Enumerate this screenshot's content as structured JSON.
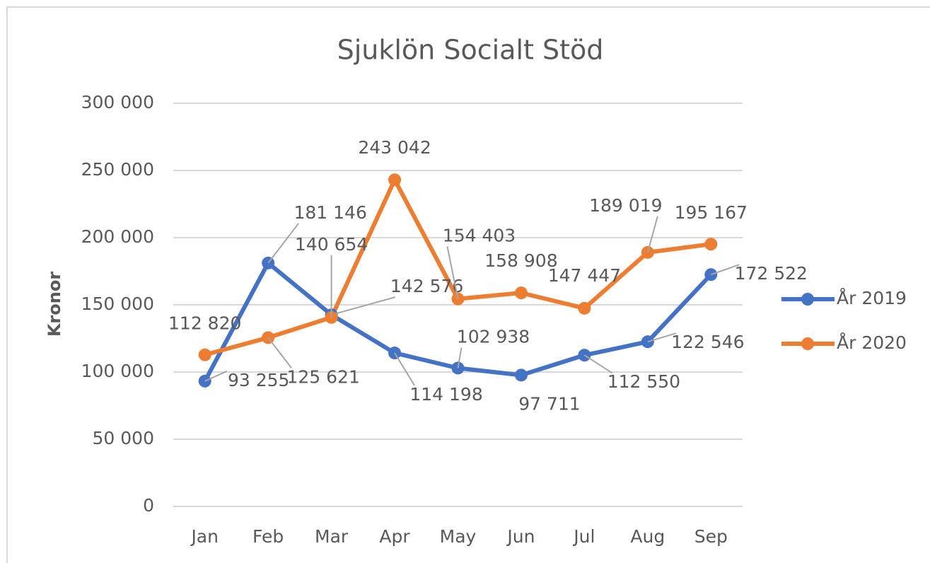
{
  "chart_data": {
    "type": "line",
    "title": "Sjuklön Socialt Stöd",
    "y_label": "Kronor",
    "categories": [
      "Jan",
      "Feb",
      "Mar",
      "Apr",
      "May",
      "Jun",
      "Jul",
      "Aug",
      "Sep"
    ],
    "series": [
      {
        "name": "År 2019",
        "color": "#4472c4",
        "values": [
          93255,
          181146,
          142576,
          114198,
          102938,
          97711,
          112550,
          122546,
          172522
        ],
        "value_labels": [
          "93 255",
          "181 146",
          "142 576",
          "114 198",
          "102 938",
          "97 711",
          "112 550",
          "122 546",
          "172 522"
        ]
      },
      {
        "name": "År 2020",
        "color": "#ed7d31",
        "values": [
          112820,
          125621,
          140654,
          243042,
          154403,
          158908,
          147447,
          189019,
          195167
        ],
        "value_labels": [
          "112 820",
          "125 621",
          "140 654",
          "243 042",
          "154 403",
          "158 908",
          "147 447",
          "189 019",
          "195 167"
        ]
      }
    ],
    "ylim": [
      0,
      300000
    ],
    "yticks": [
      {
        "value": 0,
        "label": "0"
      },
      {
        "value": 50000,
        "label": "50 000"
      },
      {
        "value": 100000,
        "label": "100 000"
      },
      {
        "value": 150000,
        "label": "150 000"
      },
      {
        "value": 200000,
        "label": "200 000"
      },
      {
        "value": 250000,
        "label": "250 000"
      },
      {
        "value": 300000,
        "label": "300 000"
      }
    ],
    "grid": true,
    "legend": "right"
  }
}
